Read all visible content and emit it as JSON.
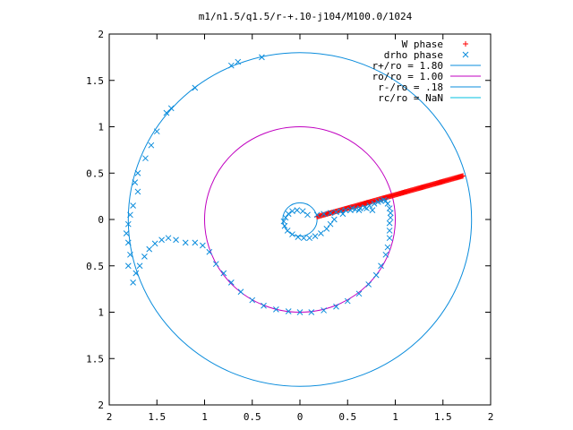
{
  "chart_data": {
    "type": "scatter",
    "title": "m1/n1.5/q1.5/r-+.10-j104/M100.0/1024",
    "xlabel": "",
    "ylabel": "",
    "xlim": [
      -2,
      2
    ],
    "ylim": [
      -2,
      2
    ],
    "x_tick_labels": [
      "2",
      "1.5",
      "1",
      "0.5",
      "0",
      "0.5",
      "1",
      "1.5",
      "2"
    ],
    "y_tick_labels": [
      "2",
      "1.5",
      "1",
      "0.5",
      "0",
      "0.5",
      "1",
      "1.5",
      "2"
    ],
    "x_tick_values": [
      -2,
      -1.5,
      -1,
      -0.5,
      0,
      0.5,
      1,
      1.5,
      2
    ],
    "y_tick_values": [
      2,
      1.5,
      1,
      0.5,
      0,
      -0.5,
      -1,
      -1.5,
      -2
    ],
    "grid": false,
    "legend_position": "top-right",
    "series": [
      {
        "name": "W phase",
        "kind": "points",
        "marker": "plus",
        "color": "#ff0000",
        "x_from": 0.18,
        "x_to": 1.71,
        "y_from": 0.03,
        "y_to": 0.47,
        "count": 160
      },
      {
        "name": "drho phase",
        "kind": "points",
        "marker": "cross",
        "color": "#0a8cdc",
        "points": [
          [
            0.18,
            0.05
          ],
          [
            0.25,
            0.06
          ],
          [
            0.32,
            0.07
          ],
          [
            0.38,
            0.08
          ],
          [
            0.43,
            0.09
          ],
          [
            0.48,
            0.1
          ],
          [
            0.53,
            0.1
          ],
          [
            0.58,
            0.11
          ],
          [
            0.63,
            0.12
          ],
          [
            0.68,
            0.13
          ],
          [
            0.73,
            0.15
          ],
          [
            0.78,
            0.17
          ],
          [
            0.82,
            0.19
          ],
          [
            0.85,
            0.2
          ],
          [
            0.88,
            0.21
          ],
          [
            0.9,
            0.2
          ],
          [
            0.92,
            0.17
          ],
          [
            0.94,
            0.12
          ],
          [
            0.95,
            0.07
          ],
          [
            0.95,
            0.02
          ],
          [
            0.94,
            -0.04
          ],
          [
            0.94,
            -0.12
          ],
          [
            0.94,
            -0.2
          ],
          [
            0.92,
            -0.3
          ],
          [
            0.9,
            -0.38
          ],
          [
            0.85,
            -0.5
          ],
          [
            0.8,
            -0.6
          ],
          [
            0.72,
            -0.7
          ],
          [
            0.62,
            -0.8
          ],
          [
            0.5,
            -0.88
          ],
          [
            0.38,
            -0.94
          ],
          [
            0.25,
            -0.98
          ],
          [
            0.12,
            -1.0
          ],
          [
            0.0,
            -1.0
          ],
          [
            -0.12,
            -0.99
          ],
          [
            -0.25,
            -0.97
          ],
          [
            -0.38,
            -0.93
          ],
          [
            -0.5,
            -0.87
          ],
          [
            -0.62,
            -0.78
          ],
          [
            -0.72,
            -0.68
          ],
          [
            -0.8,
            -0.58
          ],
          [
            -0.88,
            -0.48
          ],
          [
            -0.95,
            -0.35
          ],
          [
            -1.02,
            -0.28
          ],
          [
            -1.1,
            -0.25
          ],
          [
            -1.2,
            -0.25
          ],
          [
            -1.3,
            -0.22
          ],
          [
            -1.38,
            -0.2
          ],
          [
            -1.45,
            -0.22
          ],
          [
            -1.52,
            -0.26
          ],
          [
            -1.58,
            -0.32
          ],
          [
            -1.63,
            -0.4
          ],
          [
            -1.68,
            -0.5
          ],
          [
            -1.72,
            -0.58
          ],
          [
            -1.75,
            -0.68
          ],
          [
            -1.8,
            -0.5
          ],
          [
            -1.78,
            -0.38
          ],
          [
            -1.8,
            -0.25
          ],
          [
            -1.82,
            -0.15
          ],
          [
            -1.8,
            -0.05
          ],
          [
            -1.78,
            0.05
          ],
          [
            -1.75,
            0.15
          ],
          [
            -1.7,
            0.3
          ],
          [
            -1.73,
            0.4
          ],
          [
            -1.7,
            0.5
          ],
          [
            -1.62,
            0.66
          ],
          [
            -1.56,
            0.8
          ],
          [
            -1.5,
            0.95
          ],
          [
            -1.4,
            1.15
          ],
          [
            -1.35,
            1.2
          ],
          [
            -1.1,
            1.42
          ],
          [
            -0.72,
            1.66
          ],
          [
            -0.65,
            1.7
          ],
          [
            -0.4,
            1.75
          ],
          [
            0.08,
            0.05
          ],
          [
            0.03,
            0.09
          ],
          [
            -0.03,
            0.1
          ],
          [
            -0.08,
            0.09
          ],
          [
            -0.12,
            0.06
          ],
          [
            -0.15,
            0.02
          ],
          [
            -0.17,
            -0.02
          ],
          [
            -0.16,
            -0.07
          ],
          [
            -0.13,
            -0.12
          ],
          [
            -0.08,
            -0.16
          ],
          [
            -0.02,
            -0.19
          ],
          [
            0.04,
            -0.2
          ],
          [
            0.1,
            -0.2
          ],
          [
            0.16,
            -0.18
          ],
          [
            0.22,
            -0.15
          ],
          [
            0.28,
            -0.1
          ],
          [
            0.32,
            -0.05
          ],
          [
            0.36,
            0.0
          ],
          [
            0.45,
            0.06
          ],
          [
            0.55,
            0.12
          ],
          [
            0.62,
            0.1
          ],
          [
            0.7,
            0.12
          ],
          [
            0.76,
            0.1
          ]
        ]
      },
      {
        "name": "r+/ro = 1.80",
        "kind": "circle",
        "radius": 1.8,
        "color": "#0a8cdc"
      },
      {
        "name": "ro/ro = 1.00",
        "kind": "circle",
        "radius": 1.0,
        "color": "#c000c0"
      },
      {
        "name": "r-/ro = .18",
        "kind": "circle",
        "radius": 0.18,
        "color": "#0a8cdc"
      },
      {
        "name": "rc/ro = NaN",
        "kind": "circle",
        "radius": null,
        "color": "#00c0e0"
      }
    ]
  }
}
